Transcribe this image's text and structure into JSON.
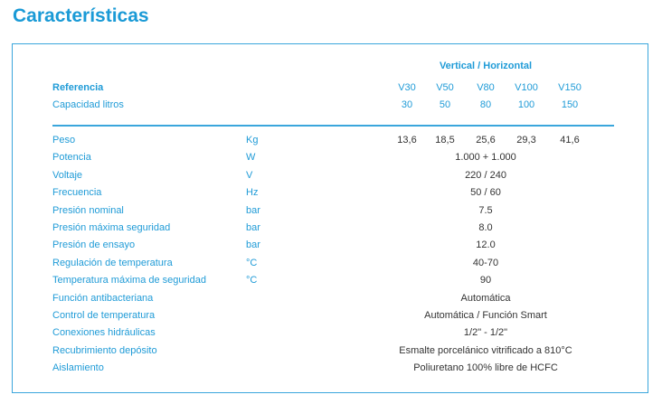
{
  "title": "Características",
  "header": {
    "group": "Vertical / Horizontal",
    "ref_label": "Referencia",
    "cap_label": "Capacidad litros",
    "models": [
      "V30",
      "V50",
      "V80",
      "V100",
      "V150"
    ],
    "capacities": [
      "30",
      "50",
      "80",
      "100",
      "150"
    ]
  },
  "rows": [
    {
      "label": "Peso",
      "unit": "Kg",
      "values": [
        "13,6",
        "18,5",
        "25,6",
        "29,3",
        "41,6"
      ]
    },
    {
      "label": "Potencia",
      "unit": "W",
      "value": "1.000 + 1.000"
    },
    {
      "label": "Voltaje",
      "unit": "V",
      "value": "220 / 240"
    },
    {
      "label": "Frecuencia",
      "unit": "Hz",
      "value": "50 / 60"
    },
    {
      "label": "Presión nominal",
      "unit": "bar",
      "value": "7.5"
    },
    {
      "label": "Presión máxima seguridad",
      "unit": "bar",
      "value": "8.0"
    },
    {
      "label": "Presión de ensayo",
      "unit": "bar",
      "value": "12.0"
    },
    {
      "label": "Regulación de temperatura",
      "unit": "°C",
      "value": "40-70"
    },
    {
      "label": "Temperatura máxima de seguridad",
      "unit": "°C",
      "value": "90"
    },
    {
      "label": "Función antibacteriana",
      "unit": "",
      "value": "Automática"
    },
    {
      "label": "Control de temperatura",
      "unit": "",
      "value": "Automática / Función Smart"
    },
    {
      "label": "Conexiones hidráulicas",
      "unit": "",
      "value": "1/2\" - 1/2\""
    },
    {
      "label": "Recubrimiento depósito",
      "unit": "",
      "value": "Esmalte porcelánico vitrificado a 810°C"
    },
    {
      "label": "Aislamiento",
      "unit": "",
      "value": "Poliuretano 100% libre de HCFC"
    }
  ]
}
